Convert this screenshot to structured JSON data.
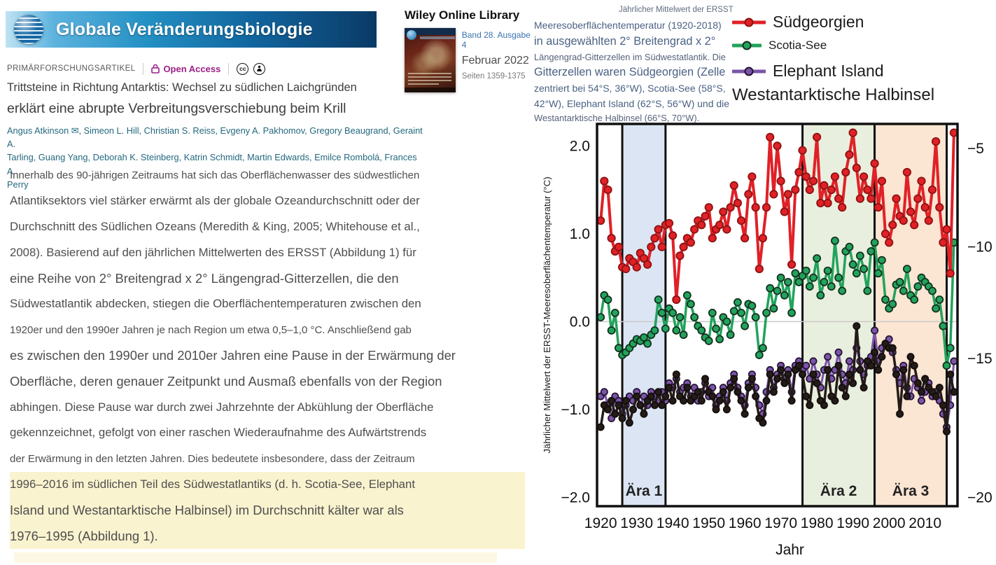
{
  "banner": {
    "title": "Globale Veränderungsbiologie"
  },
  "meta": {
    "article_type": "PRIMÄRFORSCHUNGSARTIKEL",
    "open_access_label": "Open Access",
    "cc_label": "cc"
  },
  "article": {
    "title_line1": "Trittsteine in Richtung Antarktis: Wechsel zu südlichen Laichgründen",
    "title_line2": "erklärt eine abrupte Verbreitungsverschiebung beim Krill",
    "author_lines": [
      "Angus Atkinson ✉, Simeon L. Hill, Christian S. Reiss, Evgeny A. Pakhomov, Gregory Beaugrand, Geraint A.",
      "Tarling, Guang Yang, Deborah K. Steinberg, Katrin Schmidt, Martin Edwards, Emilce Rombolá, Frances A.",
      "Perry"
    ]
  },
  "wiley": {
    "brand": "Wiley Online Library",
    "issue": "Band 28. Ausgabe 4",
    "date": "Februar 2022",
    "pages": "Seiten 1359-1375"
  },
  "body": {
    "lines": [
      {
        "text": "Innerhalb des 90-jährigen Zeitraums hat sich das Oberflächenwasser des südwestlichen",
        "size": "s",
        "highlight": false
      },
      {
        "text": "Atlantiksektors viel stärker erwärmt als der globale Ozeandurchschnitt oder der",
        "size": "m",
        "highlight": false
      },
      {
        "text": "Durchschnitt des Südlichen Ozeans (Meredith & King, 2005; Whitehouse et al.,",
        "size": "m",
        "highlight": false
      },
      {
        "text": "2008). Basierend auf den jährlichen Mittelwerten des ERSST (Abbildung 1) für",
        "size": "m",
        "highlight": false
      },
      {
        "text": "eine Reihe von 2° Breitengrad x 2° Längengrad-Gitterzellen, die den",
        "size": "l",
        "highlight": false
      },
      {
        "text": "Südwestatlantik abdecken, stiegen die Oberflächentemperaturen zwischen den",
        "size": "m",
        "highlight": false
      },
      {
        "text": "1920er und den 1990er Jahren je nach Region um etwa 0,5–1,0 °C. Anschließend gab",
        "size": "s",
        "highlight": false
      },
      {
        "text": "es zwischen den 1990er und 2010er Jahren eine Pause in der Erwärmung der",
        "size": "l",
        "highlight": false
      },
      {
        "text": "Oberfläche, deren genauer Zeitpunkt und Ausmaß ebenfalls von der Region",
        "size": "l",
        "highlight": false
      },
      {
        "text": "abhingen. Diese Pause war durch zwei Jahrzehnte der Abkühlung der Oberfläche",
        "size": "m",
        "highlight": false
      },
      {
        "text": "gekennzeichnet, gefolgt von einer raschen Wiederaufnahme des Aufwärtstrends",
        "size": "m",
        "highlight": false
      },
      {
        "text": "der Erwärmung in den letzten Jahren. Dies bedeutete insbesondere, dass der Zeitraum",
        "size": "s",
        "highlight": false
      },
      {
        "text": "1996–2016 im südlichen Teil des Südwestatlantiks (d. h. Scotia-See, Elephant",
        "size": "m",
        "highlight": true
      },
      {
        "text": "Island und Westantarktische Halbinsel) im Durchschnitt kälter war als",
        "size": "l",
        "highlight": true
      },
      {
        "text": "1976–1995 (Abbildung 1).",
        "size": "l",
        "highlight": true
      }
    ]
  },
  "figure": {
    "note": "Jährlicher Mittelwert der ERSST",
    "caption_lines": [
      {
        "text": "Meeresoberflächentemperatur (1920-2018)",
        "size": "b"
      },
      {
        "text": "in ausgewählten 2° Breitengrad x 2°",
        "size": "a"
      },
      {
        "text": "Längengrad-Gitterzellen im Südwestatlantik. Die",
        "size": "c"
      },
      {
        "text": "Gitterzellen waren Südgeorgien (Zelle",
        "size": "a"
      },
      {
        "text": "zentriert bei 54°S, 36°W), Scotia-See (58°S,",
        "size": "b"
      },
      {
        "text": "42°W), Elephant Island (62°S, 56°W) und die",
        "size": "b"
      },
      {
        "text": "Westantarktische Halbinsel (66°S, 70°W).",
        "size": "c"
      }
    ],
    "legend": [
      {
        "label": "Südgeorgien",
        "color": "#e02127",
        "edge": "#8c1212",
        "size": "lg"
      },
      {
        "label": "Scotia-See",
        "color": "#22a35c",
        "edge": "#13301f",
        "size": "sm"
      },
      {
        "label": "Elephant Island",
        "color": "#7b54a8",
        "edge": "#241433",
        "size": "lg"
      }
    ],
    "legend_extra": "Westantarktische Halbinsel"
  },
  "chart_data": {
    "type": "line",
    "title": "Jährlicher Mittelwert der ERSST",
    "xlabel": "Jahr",
    "ylabel": "Jährlicher Mittelwert der ERSST-Meeresoberflächentemperatur (°C)",
    "xlim": [
      1919,
      2019
    ],
    "ylim": [
      -2.1,
      2.25
    ],
    "year_start": 1920,
    "year_end": 2018,
    "xticks": [
      1920,
      1930,
      1940,
      1950,
      1960,
      1970,
      1980,
      1990,
      2000,
      2010
    ],
    "yticks": [
      {
        "v": 2.0,
        "label": "2.0"
      },
      {
        "v": 1.0,
        "label": "1.0"
      },
      {
        "v": 0.0,
        "label": "0.0"
      },
      {
        "v": -1.0,
        "label": "−1.0"
      },
      {
        "v": -2.0,
        "label": "−2.0"
      }
    ],
    "right_axis_labels": [
      {
        "v": 1.97,
        "label": "−5"
      },
      {
        "v": 0.85,
        "label": "−10"
      },
      {
        "v": -0.42,
        "label": "−15"
      },
      {
        "v": -2.0,
        "label": "−20"
      }
    ],
    "zero_line": true,
    "eras": [
      {
        "label": "Ära 1",
        "start": 1926,
        "end": 1938,
        "fill": "#dbe5f3"
      },
      {
        "label": "Ära 2",
        "start": 1976,
        "end": 1996,
        "fill": "#e9efde"
      },
      {
        "label": "Ära 3",
        "start": 1996,
        "end": 2016,
        "fill": "#fbe5d3"
      }
    ],
    "series": [
      {
        "name": "Südgeorgien",
        "color": "#e02127",
        "edge": "#8c1212",
        "lw": 4,
        "r": 5.2,
        "values": [
          1.15,
          1.6,
          1.5,
          0.95,
          0.8,
          0.85,
          0.62,
          0.6,
          0.72,
          0.68,
          0.62,
          0.78,
          0.72,
          0.65,
          0.85,
          0.95,
          1.05,
          0.85,
          1.1,
          1.12,
          0.98,
          0.25,
          0.75,
          0.85,
          0.95,
          0.9,
          1.05,
          1.15,
          1.1,
          1.2,
          1.3,
          0.95,
          1.05,
          1.1,
          1.25,
          1.05,
          1.3,
          1.55,
          1.35,
          1.15,
          0.95,
          1.45,
          1.65,
          1.3,
          0.6,
          0.95,
          1.3,
          2.1,
          1.45,
          2.0,
          1.6,
          1.25,
          1.45,
          0.65,
          1.5,
          1.7,
          1.95,
          1.65,
          1.5,
          1.6,
          2.1,
          1.35,
          1.55,
          1.35,
          1.5,
          1.65,
          1.4,
          1.3,
          1.7,
          1.9,
          2.15,
          1.75,
          1.4,
          1.65,
          1.5,
          1.4,
          1.8,
          1.3,
          1.6,
          1.0,
          0.9,
          1.1,
          1.4,
          1.2,
          1.15,
          1.7,
          1.25,
          1.1,
          1.4,
          1.6,
          1.3,
          1.15,
          1.5,
          2.05,
          1.3,
          0.9,
          1.05,
          0.55,
          2.15
        ]
      },
      {
        "name": "Scotia-See",
        "color": "#22a35c",
        "edge": "#13301f",
        "lw": 3.5,
        "r": 5.0,
        "values": [
          0.05,
          0.3,
          0.25,
          -0.1,
          0.1,
          -0.3,
          -0.38,
          -0.35,
          -0.3,
          -0.25,
          -0.2,
          -0.22,
          -0.18,
          -0.25,
          -0.15,
          -0.1,
          0.25,
          0.1,
          -0.08,
          0.15,
          0.1,
          -0.1,
          0.05,
          -0.15,
          0.3,
          0.2,
          0.05,
          -0.05,
          -0.1,
          -0.18,
          -0.22,
          0.1,
          -0.08,
          -0.2,
          0.05,
          0.0,
          -0.15,
          0.12,
          0.22,
          0.1,
          -0.05,
          0.2,
          0.18,
          0.05,
          -0.38,
          -0.3,
          0.1,
          0.38,
          0.15,
          0.35,
          0.5,
          0.3,
          0.45,
          0.1,
          0.55,
          0.45,
          0.52,
          0.58,
          0.4,
          0.5,
          0.72,
          0.3,
          0.45,
          0.58,
          0.4,
          0.92,
          0.5,
          0.35,
          0.8,
          0.85,
          0.65,
          0.55,
          0.75,
          0.6,
          0.35,
          0.8,
          0.9,
          0.55,
          0.7,
          0.25,
          0.15,
          0.2,
          0.42,
          0.45,
          0.35,
          0.6,
          0.3,
          0.25,
          0.4,
          0.5,
          0.45,
          0.4,
          0.35,
          0.15,
          0.25,
          -0.05,
          -0.5,
          -0.3,
          0.9
        ]
      },
      {
        "name": "Elephant Island",
        "color": "#7b54a8",
        "edge": "#241433",
        "lw": 3,
        "r": 4.6,
        "values": [
          -0.85,
          -0.8,
          -0.95,
          -1.1,
          -0.85,
          -0.9,
          -1.05,
          -0.95,
          -0.85,
          -0.9,
          -0.8,
          -0.95,
          -0.85,
          -0.95,
          -0.8,
          -0.85,
          -0.9,
          -0.8,
          -0.9,
          -0.7,
          -0.75,
          -0.65,
          -0.8,
          -0.75,
          -0.7,
          -0.85,
          -0.75,
          -0.9,
          -0.8,
          -0.7,
          -0.85,
          -0.75,
          -0.95,
          -0.85,
          -0.75,
          -0.9,
          -0.7,
          -0.6,
          -0.75,
          -0.85,
          -0.95,
          -0.7,
          -0.6,
          -0.75,
          -0.95,
          -1.05,
          -0.8,
          -0.55,
          -0.75,
          -0.6,
          -0.5,
          -0.65,
          -0.55,
          -0.8,
          -0.5,
          -0.45,
          -0.55,
          -0.5,
          -0.65,
          -0.45,
          -0.6,
          -0.75,
          -0.55,
          -0.4,
          -0.65,
          -0.55,
          -0.35,
          -0.6,
          -0.7,
          -0.45,
          -0.55,
          -0.3,
          -0.45,
          -0.6,
          -0.5,
          -0.4,
          -0.1,
          -0.45,
          -0.3,
          -0.25,
          -0.2,
          -0.35,
          -0.55,
          -0.7,
          -0.5,
          -0.75,
          -0.85,
          -0.65,
          -0.75,
          -0.9,
          -0.8,
          -0.7,
          -0.85,
          -0.8,
          -0.9,
          -1.05,
          -1.2,
          -0.95,
          -0.45
        ]
      },
      {
        "name": "Westantarktische Halbinsel",
        "color": "#241c18",
        "edge": "#120d0b",
        "lw": 3.5,
        "r": 4.6,
        "values": [
          -1.2,
          -0.95,
          -1.0,
          -0.9,
          -1.05,
          -0.95,
          -1.1,
          -0.9,
          -1.15,
          -1.0,
          -0.85,
          -0.95,
          -1.05,
          -0.9,
          -0.85,
          -0.95,
          -0.8,
          -0.95,
          -0.85,
          -0.75,
          -0.9,
          -0.6,
          -0.85,
          -0.9,
          -0.75,
          -0.9,
          -0.85,
          -0.8,
          -0.9,
          -0.65,
          -0.8,
          -0.85,
          -1.0,
          -0.9,
          -0.8,
          -1.0,
          -0.75,
          -0.65,
          -0.8,
          -0.9,
          -1.05,
          -0.75,
          -0.65,
          -0.85,
          -1.1,
          -1.15,
          -0.9,
          -0.6,
          -0.8,
          -0.65,
          -0.55,
          -0.7,
          -0.6,
          -0.9,
          -0.55,
          -0.5,
          -0.6,
          -0.85,
          -0.95,
          -0.6,
          -0.7,
          -0.9,
          -0.95,
          -0.55,
          -0.85,
          -0.9,
          -0.5,
          -0.75,
          -0.85,
          -0.6,
          -0.7,
          -0.05,
          -0.55,
          -0.75,
          -0.45,
          -0.5,
          -0.35,
          -0.55,
          -0.4,
          -0.25,
          -0.3,
          -0.3,
          -0.6,
          -1.05,
          -0.55,
          -0.85,
          -0.4,
          -0.5,
          -0.7,
          -0.8,
          -0.65,
          -0.75,
          -0.8,
          -0.85,
          -0.75,
          -0.95,
          -1.25,
          -0.6,
          -0.8
        ]
      }
    ]
  }
}
